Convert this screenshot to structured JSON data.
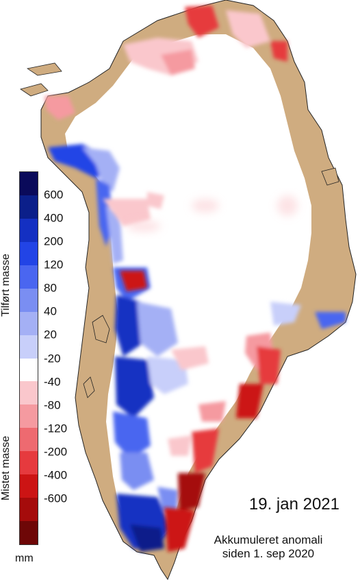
{
  "colors": {
    "land": "#cfac80",
    "ice": "#ffffff",
    "coast": "#222222",
    "gain": [
      "#0a0a5a",
      "#0b1f8a",
      "#1430c2",
      "#2244e6",
      "#4a66f0",
      "#7a8ef2",
      "#a4b0f5",
      "#c8cffa",
      "#ffffff",
      "#fac7cc",
      "#f59aa0",
      "#ee6a70",
      "#e63a3e",
      "#cc1414",
      "#a50b0b",
      "#6e0707"
    ]
  },
  "legend": {
    "gain_title": "Tilført masse",
    "loss_title": "Mistet masse",
    "unit": "mm",
    "ticks": [
      "600",
      "400",
      "200",
      "120",
      "80",
      "40",
      "20",
      "-20",
      "-40",
      "-80",
      "-120",
      "-200",
      "-400",
      "-600"
    ]
  },
  "date": "19. jan 2021",
  "caption": [
    "Akkumuleret anomali",
    "siden 1. sep 2020"
  ]
}
